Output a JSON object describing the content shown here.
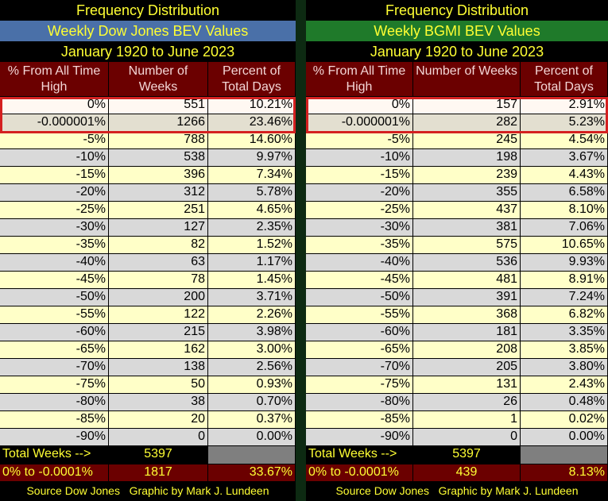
{
  "panels": [
    {
      "title": "Frequency Distribution",
      "subtitle": "Weekly Dow Jones BEV Values",
      "period": "January 1920 to June 2023",
      "headers": [
        "% From All Time High",
        "Number of Weeks",
        "Percent of Total Days"
      ],
      "rows": [
        [
          "0%",
          "551",
          "10.21%"
        ],
        [
          "-0.000001%",
          "1266",
          "23.46%"
        ],
        [
          "-5%",
          "788",
          "14.60%"
        ],
        [
          "-10%",
          "538",
          "9.97%"
        ],
        [
          "-15%",
          "396",
          "7.34%"
        ],
        [
          "-20%",
          "312",
          "5.78%"
        ],
        [
          "-25%",
          "251",
          "4.65%"
        ],
        [
          "-30%",
          "127",
          "2.35%"
        ],
        [
          "-35%",
          "82",
          "1.52%"
        ],
        [
          "-40%",
          "63",
          "1.17%"
        ],
        [
          "-45%",
          "78",
          "1.45%"
        ],
        [
          "-50%",
          "200",
          "3.71%"
        ],
        [
          "-55%",
          "122",
          "2.26%"
        ],
        [
          "-60%",
          "215",
          "3.98%"
        ],
        [
          "-65%",
          "162",
          "3.00%"
        ],
        [
          "-70%",
          "138",
          "2.56%"
        ],
        [
          "-75%",
          "50",
          "0.93%"
        ],
        [
          "-80%",
          "38",
          "0.70%"
        ],
        [
          "-85%",
          "20",
          "0.37%"
        ],
        [
          "-90%",
          "0",
          "0.00%"
        ]
      ],
      "total": [
        "Total Weeks -->",
        "5397"
      ],
      "summary": [
        "0% to -0.0001%",
        "1817",
        "33.67%"
      ],
      "source": "Source Dow Jones   Graphic by Mark J. Lundeen"
    },
    {
      "title": "Frequency Distribution",
      "subtitle": "Weekly BGMI BEV Values",
      "period": "January 1920 to June 2023",
      "headers": [
        "% From All Time High",
        "Number of Weeks",
        "Percent of Total Days"
      ],
      "rows": [
        [
          "0%",
          "157",
          "2.91%"
        ],
        [
          "-0.000001%",
          "282",
          "5.23%"
        ],
        [
          "-5%",
          "245",
          "4.54%"
        ],
        [
          "-10%",
          "198",
          "3.67%"
        ],
        [
          "-15%",
          "239",
          "4.43%"
        ],
        [
          "-20%",
          "355",
          "6.58%"
        ],
        [
          "-25%",
          "437",
          "8.10%"
        ],
        [
          "-30%",
          "381",
          "7.06%"
        ],
        [
          "-35%",
          "575",
          "10.65%"
        ],
        [
          "-40%",
          "536",
          "9.93%"
        ],
        [
          "-45%",
          "481",
          "8.91%"
        ],
        [
          "-50%",
          "391",
          "7.24%"
        ],
        [
          "-55%",
          "368",
          "6.82%"
        ],
        [
          "-60%",
          "181",
          "3.35%"
        ],
        [
          "-65%",
          "208",
          "3.85%"
        ],
        [
          "-70%",
          "205",
          "3.80%"
        ],
        [
          "-75%",
          "131",
          "2.43%"
        ],
        [
          "-80%",
          "26",
          "0.48%"
        ],
        [
          "-85%",
          "1",
          "0.02%"
        ],
        [
          "-90%",
          "0",
          "0.00%"
        ]
      ],
      "total": [
        "Total Weeks -->",
        "5397"
      ],
      "summary": [
        "0% to -0.0001%",
        "439",
        "8.13%"
      ],
      "source": "Source Dow Jones   Graphic by Mark J. Lundeen"
    }
  ]
}
